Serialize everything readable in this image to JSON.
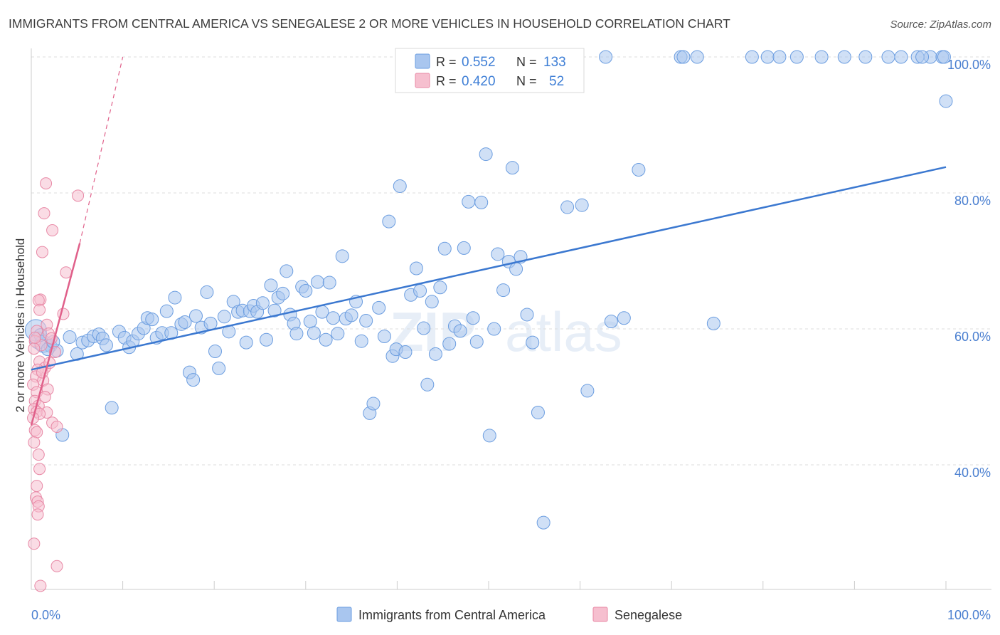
{
  "header": {
    "title": "IMMIGRANTS FROM CENTRAL AMERICA VS SENEGALESE 2 OR MORE VEHICLES IN HOUSEHOLD CORRELATION CHART",
    "source": "Source: ZipAtlas.com"
  },
  "watermark": {
    "zip": "ZIP",
    "atlas": "atlas"
  },
  "legend": {
    "r_label": "R =",
    "n_label": "N =",
    "entries": [
      {
        "r": "0.552",
        "n": "133",
        "color": "#a9c6ef",
        "stroke": "#6b9de0"
      },
      {
        "r": "0.420",
        "n": "52",
        "color": "#f6bfcf",
        "stroke": "#e889a6"
      }
    ]
  },
  "chart_data": {
    "type": "scatter",
    "title": "IMMIGRANTS FROM CENTRAL AMERICA VS SENEGALESE 2 OR MORE VEHICLES IN HOUSEHOLD CORRELATION CHART",
    "xlabel": "",
    "ylabel": "2 or more Vehicles in Household",
    "xlim": [
      0,
      100
    ],
    "ylim": [
      20,
      102
    ],
    "x_tick_labels": [
      "0.0%",
      "100.0%"
    ],
    "y_tick_values": [
      40,
      60,
      80,
      100
    ],
    "y_tick_labels": [
      "40.0%",
      "60.0%",
      "80.0%",
      "100.0%"
    ],
    "grid": true,
    "legend_position": "top-center",
    "series": [
      {
        "name": "Immigrants from Central America",
        "color": "#a9c6ef",
        "stroke": "#6b9de0",
        "trend": {
          "x": [
            0,
            100
          ],
          "y": [
            54.0,
            83.8
          ],
          "color": "#3b78d0"
        },
        "points": [
          [
            0.5,
            59.8
          ],
          [
            0.8,
            58.3
          ],
          [
            1.3,
            57.8
          ],
          [
            2.1,
            57.5
          ],
          [
            2.8,
            56.8
          ],
          [
            3.4,
            44.4
          ],
          [
            4.2,
            58.8
          ],
          [
            5.0,
            56.3
          ],
          [
            5.6,
            58.0
          ],
          [
            6.2,
            58.3
          ],
          [
            6.8,
            58.9
          ],
          [
            7.4,
            59.2
          ],
          [
            7.8,
            58.6
          ],
          [
            8.2,
            57.6
          ],
          [
            8.8,
            48.4
          ],
          [
            9.6,
            59.6
          ],
          [
            10.2,
            58.7
          ],
          [
            10.7,
            57.3
          ],
          [
            11.1,
            58.2
          ],
          [
            11.7,
            59.3
          ],
          [
            12.3,
            60.1
          ],
          [
            12.7,
            61.6
          ],
          [
            13.2,
            61.4
          ],
          [
            13.7,
            58.7
          ],
          [
            14.3,
            59.4
          ],
          [
            14.8,
            62.6
          ],
          [
            15.3,
            59.4
          ],
          [
            15.7,
            64.6
          ],
          [
            16.4,
            60.7
          ],
          [
            16.8,
            61.0
          ],
          [
            17.3,
            53.6
          ],
          [
            17.7,
            52.5
          ],
          [
            18.0,
            61.9
          ],
          [
            18.6,
            60.2
          ],
          [
            19.2,
            65.4
          ],
          [
            19.6,
            60.8
          ],
          [
            20.1,
            56.7
          ],
          [
            20.5,
            54.2
          ],
          [
            21.1,
            61.8
          ],
          [
            21.6,
            59.6
          ],
          [
            22.1,
            64.0
          ],
          [
            22.6,
            62.5
          ],
          [
            23.1,
            62.7
          ],
          [
            23.5,
            58.0
          ],
          [
            23.9,
            62.6
          ],
          [
            24.3,
            63.4
          ],
          [
            24.7,
            62.5
          ],
          [
            25.3,
            63.8
          ],
          [
            25.7,
            58.4
          ],
          [
            26.2,
            66.4
          ],
          [
            26.6,
            62.7
          ],
          [
            27.0,
            64.6
          ],
          [
            27.5,
            65.2
          ],
          [
            27.9,
            68.5
          ],
          [
            28.3,
            62.1
          ],
          [
            28.7,
            60.8
          ],
          [
            29.0,
            59.3
          ],
          [
            29.6,
            66.2
          ],
          [
            30.0,
            65.6
          ],
          [
            30.5,
            61.1
          ],
          [
            30.9,
            59.4
          ],
          [
            31.3,
            66.9
          ],
          [
            31.8,
            62.5
          ],
          [
            32.2,
            58.4
          ],
          [
            32.6,
            66.8
          ],
          [
            33.0,
            61.6
          ],
          [
            33.5,
            59.3
          ],
          [
            34.0,
            70.7
          ],
          [
            34.4,
            61.5
          ],
          [
            35.0,
            62.0
          ],
          [
            35.5,
            64.0
          ],
          [
            36.1,
            58.2
          ],
          [
            36.6,
            61.2
          ],
          [
            37.0,
            47.6
          ],
          [
            37.4,
            49.0
          ],
          [
            38.0,
            63.1
          ],
          [
            38.6,
            58.9
          ],
          [
            39.1,
            75.8
          ],
          [
            39.5,
            56.0
          ],
          [
            39.9,
            57.0
          ],
          [
            40.3,
            81.0
          ],
          [
            40.9,
            56.6
          ],
          [
            41.5,
            65.0
          ],
          [
            42.1,
            68.9
          ],
          [
            42.5,
            65.6
          ],
          [
            42.9,
            60.1
          ],
          [
            43.3,
            51.8
          ],
          [
            43.8,
            64.0
          ],
          [
            44.2,
            56.3
          ],
          [
            44.7,
            66.1
          ],
          [
            45.2,
            71.8
          ],
          [
            45.7,
            57.8
          ],
          [
            46.3,
            60.4
          ],
          [
            46.9,
            59.7
          ],
          [
            47.3,
            71.9
          ],
          [
            47.8,
            78.7
          ],
          [
            48.3,
            61.6
          ],
          [
            48.7,
            58.1
          ],
          [
            49.2,
            78.6
          ],
          [
            49.7,
            85.7
          ],
          [
            50.1,
            44.3
          ],
          [
            50.6,
            60.0
          ],
          [
            51.0,
            71.0
          ],
          [
            51.6,
            65.7
          ],
          [
            52.2,
            69.9
          ],
          [
            52.6,
            83.7
          ],
          [
            53.0,
            68.8
          ],
          [
            53.5,
            70.6
          ],
          [
            54.2,
            62.1
          ],
          [
            54.8,
            58.0
          ],
          [
            55.4,
            47.7
          ],
          [
            56.0,
            31.5
          ],
          [
            56.6,
            96.9
          ],
          [
            57.2,
            100.0
          ],
          [
            58.6,
            77.9
          ],
          [
            60.2,
            78.2
          ],
          [
            60.8,
            50.9
          ],
          [
            62.8,
            100.0
          ],
          [
            63.4,
            61.1
          ],
          [
            64.8,
            61.6
          ],
          [
            66.4,
            83.4
          ],
          [
            71.0,
            100.0
          ],
          [
            71.3,
            100.0
          ],
          [
            72.8,
            100.0
          ],
          [
            74.6,
            60.8
          ],
          [
            78.8,
            100.0
          ],
          [
            80.5,
            100.0
          ],
          [
            81.8,
            100.0
          ],
          [
            83.7,
            100.0
          ],
          [
            86.4,
            100.0
          ],
          [
            88.9,
            100.0
          ],
          [
            91.2,
            100.0
          ],
          [
            93.7,
            100.0
          ],
          [
            96.9,
            100.0
          ],
          [
            98.3,
            100.0
          ],
          [
            99.6,
            100.0
          ],
          [
            100.0,
            93.5
          ],
          [
            99.8,
            100.0
          ],
          [
            97.4,
            100.0
          ],
          [
            95.1,
            100.0
          ],
          [
            1.0,
            59.1
          ],
          [
            1.8,
            57.0
          ],
          [
            2.4,
            58.1
          ]
        ]
      },
      {
        "name": "Senegalese",
        "color": "#f6bfcf",
        "stroke": "#e889a6",
        "trend": {
          "x": [
            0,
            5.3
          ],
          "y": [
            45.8,
            72.6
          ],
          "color": "#e0608a",
          "dashed_extension": {
            "x": [
              5.3,
              10
            ],
            "y": [
              72.6,
              100
            ]
          }
        },
        "points": [
          [
            1.6,
            81.4
          ],
          [
            5.1,
            79.6
          ],
          [
            1.4,
            77.0
          ],
          [
            2.3,
            74.5
          ],
          [
            1.2,
            71.3
          ],
          [
            3.8,
            68.3
          ],
          [
            1.0,
            64.3
          ],
          [
            0.8,
            64.2
          ],
          [
            3.5,
            62.2
          ],
          [
            1.7,
            60.6
          ],
          [
            0.6,
            59.7
          ],
          [
            1.9,
            59.3
          ],
          [
            2.2,
            58.6
          ],
          [
            0.4,
            58.2
          ],
          [
            1.1,
            57.6
          ],
          [
            0.3,
            57.1
          ],
          [
            2.6,
            56.6
          ],
          [
            0.9,
            55.2
          ],
          [
            1.5,
            54.3
          ],
          [
            0.7,
            54.0
          ],
          [
            0.5,
            53.0
          ],
          [
            1.3,
            52.4
          ],
          [
            0.2,
            51.8
          ],
          [
            1.8,
            51.1
          ],
          [
            0.6,
            50.7
          ],
          [
            1.5,
            50.0
          ],
          [
            0.4,
            49.4
          ],
          [
            0.8,
            48.7
          ],
          [
            0.3,
            48.2
          ],
          [
            0.6,
            47.8
          ],
          [
            1.7,
            47.7
          ],
          [
            0.9,
            47.5
          ],
          [
            0.2,
            46.9
          ],
          [
            2.3,
            46.2
          ],
          [
            2.8,
            45.6
          ],
          [
            0.4,
            45.1
          ],
          [
            0.6,
            44.8
          ],
          [
            0.3,
            43.3
          ],
          [
            0.8,
            41.5
          ],
          [
            0.9,
            39.4
          ],
          [
            0.6,
            36.9
          ],
          [
            0.5,
            35.2
          ],
          [
            0.7,
            34.6
          ],
          [
            0.8,
            33.9
          ],
          [
            0.7,
            32.7
          ],
          [
            0.3,
            28.4
          ],
          [
            2.8,
            25.1
          ],
          [
            1.0,
            22.2
          ],
          [
            0.4,
            58.7
          ],
          [
            1.2,
            53.6
          ],
          [
            2.0,
            55.0
          ],
          [
            0.9,
            62.8
          ]
        ]
      }
    ]
  },
  "bottom_legend": [
    {
      "label": "Immigrants from Central America",
      "color": "#a9c6ef",
      "stroke": "#6b9de0"
    },
    {
      "label": "Senegalese",
      "color": "#f6bfcf",
      "stroke": "#e889a6"
    }
  ]
}
